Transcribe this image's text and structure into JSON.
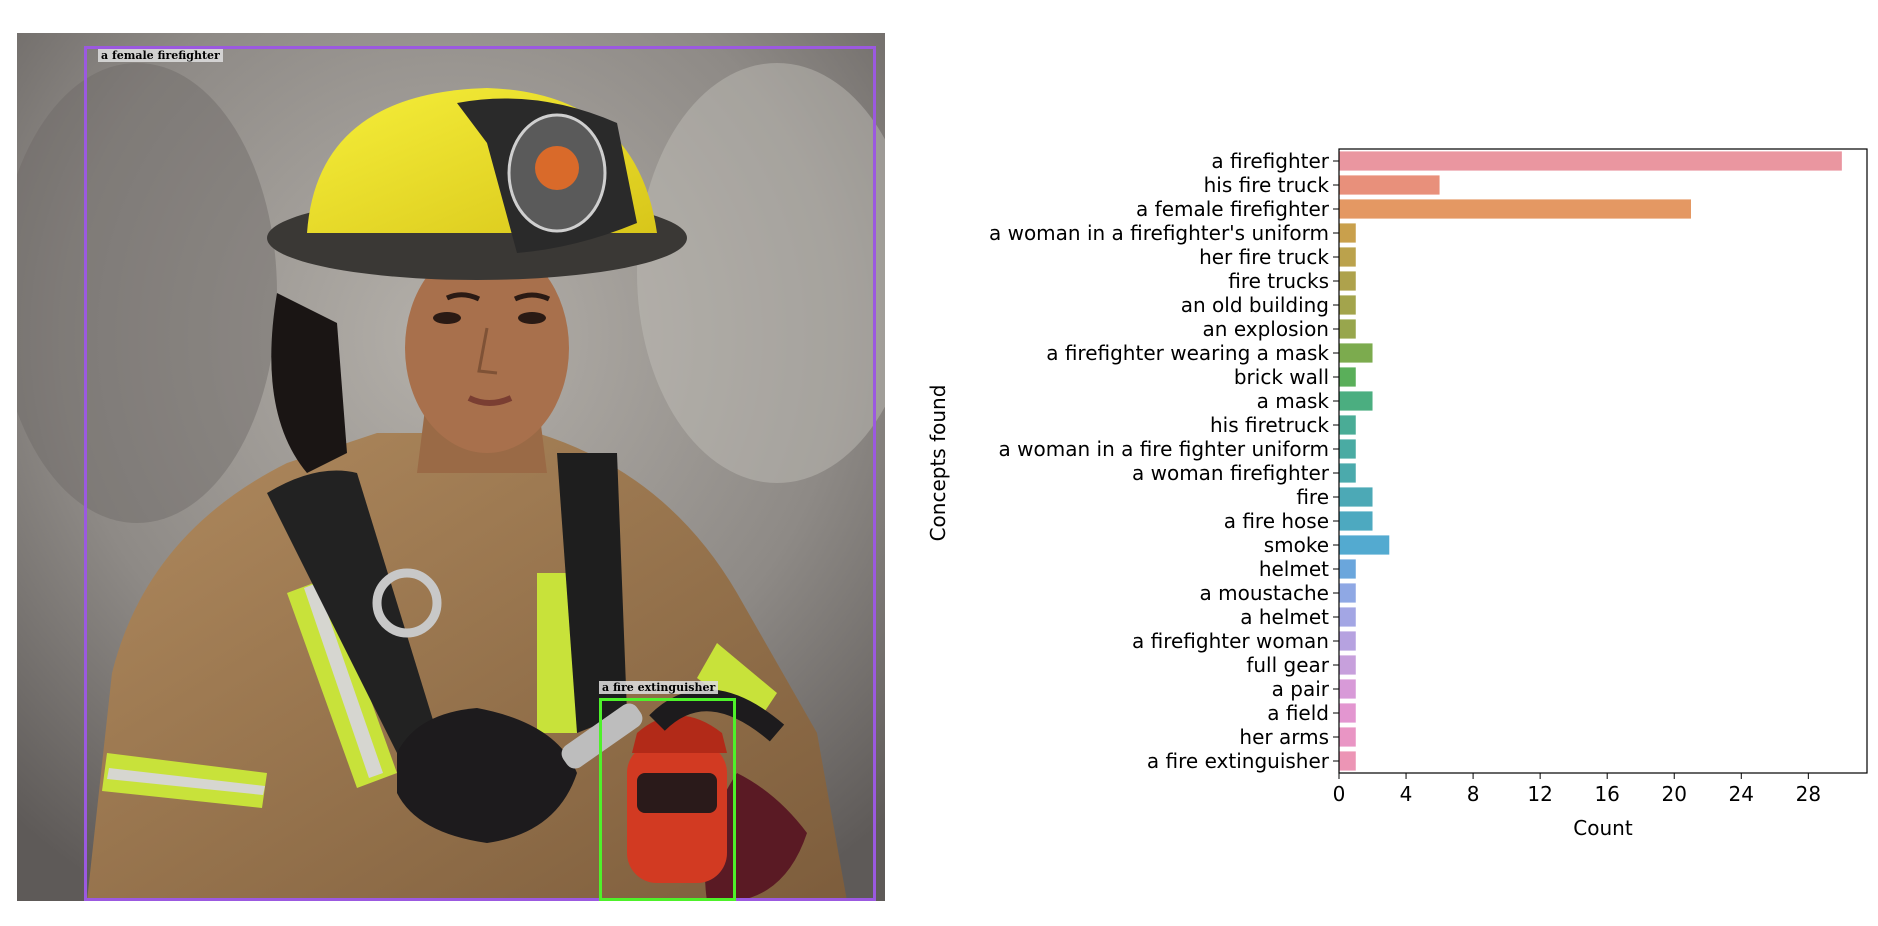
{
  "detections": [
    {
      "label": "a female firefighter",
      "color": "#9b59e0"
    },
    {
      "label": "a fire extinguisher",
      "color": "#4ef12a"
    }
  ],
  "chart_data": {
    "type": "bar",
    "orientation": "horizontal",
    "xlabel": "Count",
    "ylabel": "Concepts found",
    "xlim": [
      0,
      31.5
    ],
    "xticks": [
      0,
      4,
      8,
      12,
      16,
      20,
      24,
      28
    ],
    "grid": false,
    "categories": [
      "a firefighter",
      "his fire truck",
      "a female firefighter",
      "a woman in a firefighter's uniform",
      "her fire truck",
      "fire trucks",
      "an old building",
      "an explosion",
      "a firefighter wearing a mask",
      "brick wall",
      "a mask",
      "his firetruck",
      "a woman in a fire fighter uniform",
      "a woman firefighter",
      "fire",
      "a fire hose",
      "smoke",
      "helmet",
      "a moustache",
      "a helmet",
      "a firefighter woman",
      "full gear",
      "a pair",
      "a field",
      "her arms",
      "a fire extinguisher"
    ],
    "values": [
      30,
      6,
      21,
      1,
      1,
      1,
      1,
      1,
      2,
      1,
      2,
      1,
      1,
      1,
      2,
      2,
      3,
      1,
      1,
      1,
      1,
      1,
      1,
      1,
      1,
      1
    ],
    "colors": [
      "#ea96a0",
      "#e8907b",
      "#e49863",
      "#c9a04c",
      "#bba24c",
      "#aea24c",
      "#a3a44c",
      "#98a64d",
      "#7cab4e",
      "#5aaf5a",
      "#4bae80",
      "#4aac96",
      "#4aaba3",
      "#4baaac",
      "#4ca9b6",
      "#4da9c0",
      "#53aad0",
      "#6aa6dc",
      "#8fa8e4",
      "#a3a6e4",
      "#b6a2e0",
      "#c7a0dc",
      "#d89ad8",
      "#e396d0",
      "#e995c4",
      "#ec95b5"
    ]
  }
}
